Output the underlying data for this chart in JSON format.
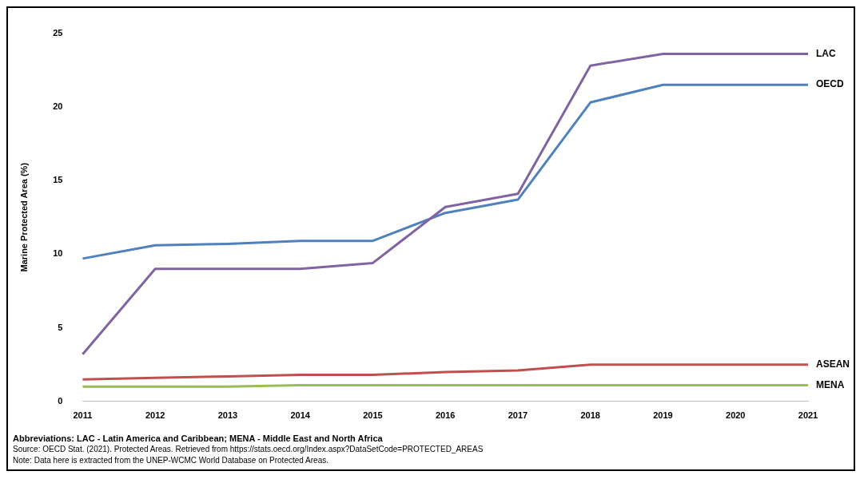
{
  "chart_data": {
    "type": "line",
    "ylabel": "Marine Protected Area (%)",
    "categories": [
      "2011",
      "2012",
      "2013",
      "2014",
      "2015",
      "2016",
      "2017",
      "2018",
      "2019",
      "2020",
      "2021"
    ],
    "series": [
      {
        "name": "LAC",
        "color": "#8064a2",
        "values": [
          3.2,
          9.0,
          9.0,
          9.0,
          9.4,
          13.2,
          14.1,
          22.8,
          23.6,
          23.6,
          23.6
        ]
      },
      {
        "name": "OECD",
        "color": "#4f81bd",
        "values": [
          9.7,
          10.6,
          10.7,
          10.9,
          10.9,
          12.8,
          13.7,
          20.3,
          21.5,
          21.5,
          21.5
        ]
      },
      {
        "name": "ASEAN",
        "color": "#c0504d",
        "values": [
          1.5,
          1.6,
          1.7,
          1.8,
          1.8,
          2.0,
          2.1,
          2.5,
          2.5,
          2.5,
          2.5
        ]
      },
      {
        "name": "MENA",
        "color": "#9bbb59",
        "values": [
          1.0,
          1.0,
          1.0,
          1.1,
          1.1,
          1.1,
          1.1,
          1.1,
          1.1,
          1.1,
          1.1
        ]
      }
    ],
    "ylim": [
      0,
      25
    ],
    "yticks": [
      0,
      5,
      10,
      15,
      20,
      25
    ],
    "grid": false,
    "legend": false,
    "marker": "none",
    "line_style": "solid",
    "annotations": [
      "Abbreviations: LAC - Latin America and Caribbean; MENA - Middle East and North Africa",
      "Source: OECD Stat. (2021). Protected Areas. Retrieved from https://stats.oecd.org/Index.aspx?DataSetCode=PROTECTED_AREAS",
      "Note: Data here is extracted from the UNEP-WCMC World Database on Protected Areas."
    ]
  }
}
